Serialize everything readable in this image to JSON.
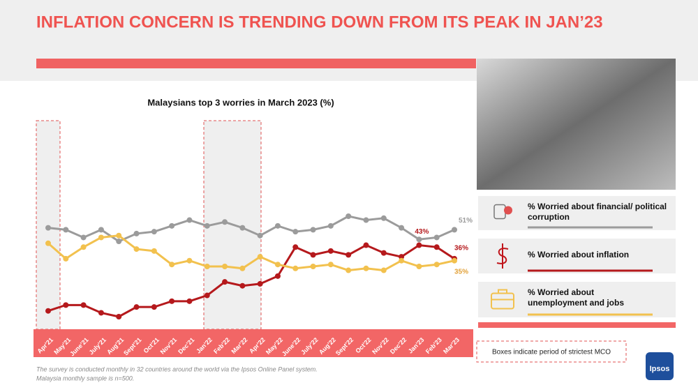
{
  "header": {
    "title": "INFLATION CONCERN IS TRENDING DOWN FROM ITS PEAK IN JAN’23"
  },
  "chart_data": {
    "type": "line",
    "title": "Malaysians top 3 worries in March 2023 (%)",
    "categories": [
      "Apr'21",
      "May'21",
      "June'21",
      "July'21",
      "Aug'21",
      "Sept'21",
      "Oct'21",
      "Nov'21",
      "Dec'21",
      "Jan'22",
      "Feb'22",
      "Mar'22",
      "Apr'22",
      "May'22",
      "June'22",
      "July'22",
      "Aug'22",
      "Sept'22",
      "Oct'22",
      "Nov'22",
      "Dec'22",
      "Jan'23",
      "Feb'23",
      "Mar'23"
    ],
    "series": [
      {
        "name": "% Worried about financial/ political corruption",
        "color": "#9b9b9b",
        "label_color": "#9b9b9b",
        "values": [
          52,
          51,
          47,
          51,
          45,
          49,
          50,
          53,
          56,
          53,
          55,
          52,
          48,
          53,
          50,
          51,
          53,
          58,
          56,
          57,
          52,
          46,
          47,
          51
        ],
        "value_labels": [
          null,
          null,
          null,
          null,
          null,
          null,
          null,
          null,
          null,
          null,
          null,
          null,
          null,
          null,
          null,
          null,
          null,
          null,
          null,
          null,
          null,
          null,
          null,
          "51%"
        ]
      },
      {
        "name": "% Worried about inflation",
        "color": "#b5191c",
        "label_color": "#b5191c",
        "values": [
          9,
          12,
          12,
          8,
          6,
          11,
          11,
          14,
          14,
          17,
          24,
          22,
          23,
          27,
          42,
          38,
          40,
          38,
          43,
          39,
          37,
          43,
          42,
          36
        ],
        "value_labels": [
          null,
          null,
          null,
          null,
          null,
          null,
          null,
          null,
          null,
          null,
          null,
          null,
          null,
          null,
          null,
          null,
          null,
          null,
          null,
          null,
          null,
          "43%",
          null,
          "36%"
        ]
      },
      {
        "name": "% Worried about unemployment and jobs",
        "color": "#f2c14e",
        "label_color": "#e2a23a",
        "values": [
          44,
          36,
          42,
          47,
          48,
          41,
          40,
          33,
          35,
          32,
          32,
          31,
          37,
          33,
          31,
          32,
          33,
          30,
          31,
          30,
          35,
          32,
          33,
          35
        ],
        "value_labels": [
          null,
          null,
          null,
          null,
          null,
          null,
          null,
          null,
          null,
          null,
          null,
          null,
          null,
          null,
          null,
          null,
          null,
          null,
          null,
          null,
          null,
          null,
          null,
          "35%"
        ]
      }
    ],
    "note": "Boxes indicate period of strictest MCO"
  },
  "footnote": [
    "The survey is conducted monthly in 32 countries around the world via the Ipsos Online Panel system.",
    "Malaysia monthly sample is n=500."
  ],
  "logo": "Ipsos"
}
